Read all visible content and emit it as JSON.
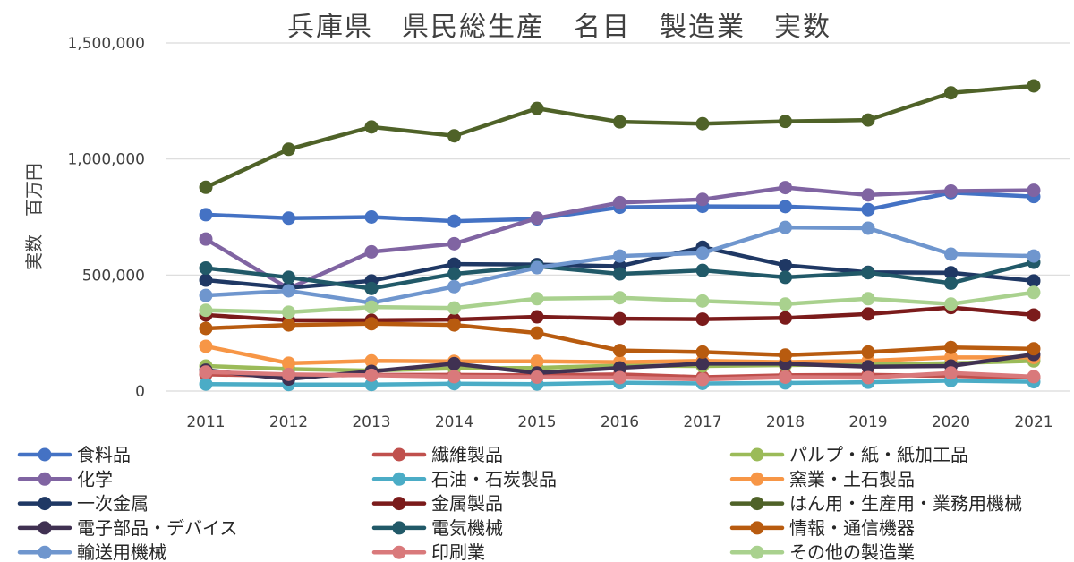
{
  "chart_data": {
    "type": "line",
    "title": "兵庫県　県民総生産　名目　製造業　実数",
    "ylabel": "実数　百万円",
    "xlabel": "",
    "x": [
      "2011",
      "2012",
      "2013",
      "2014",
      "2015",
      "2016",
      "2017",
      "2018",
      "2019",
      "2020",
      "2021"
    ],
    "ylim": [
      0,
      1500000
    ],
    "yticks": [
      0,
      500000,
      1000000,
      1500000
    ],
    "ytick_labels": [
      "0",
      "500,000",
      "1,000,000",
      "1,500,000"
    ],
    "grid": true,
    "legend_position": "bottom",
    "series": [
      {
        "name": "食料品",
        "color": "#4472C4",
        "values": [
          760000,
          745000,
          750000,
          732000,
          742000,
          792000,
          796000,
          795000,
          782000,
          855000,
          838000
        ]
      },
      {
        "name": "繊維製品",
        "color": "#C0504D",
        "values": [
          72000,
          65000,
          70000,
          70000,
          68000,
          72000,
          60000,
          68000,
          70000,
          65000,
          58000
        ]
      },
      {
        "name": "パルプ・紙・紙加工品",
        "color": "#9BBB59",
        "values": [
          108000,
          95000,
          88000,
          98000,
          100000,
          110000,
          108000,
          112000,
          115000,
          120000,
          130000
        ]
      },
      {
        "name": "化学",
        "color": "#8064A2",
        "values": [
          655000,
          442000,
          600000,
          635000,
          745000,
          812000,
          826000,
          877000,
          845000,
          862000,
          865000
        ]
      },
      {
        "name": "石油・石炭製品",
        "color": "#4BACC6",
        "values": [
          30000,
          28000,
          28000,
          32000,
          30000,
          36000,
          33000,
          35000,
          38000,
          45000,
          40000
        ]
      },
      {
        "name": "窯業・土石製品",
        "color": "#F79646",
        "values": [
          193000,
          120000,
          130000,
          128000,
          128000,
          125000,
          130000,
          125000,
          130000,
          145000,
          145000
        ]
      },
      {
        "name": "一次金属",
        "color": "#1F3864",
        "values": [
          478000,
          445000,
          475000,
          547000,
          545000,
          538000,
          620000,
          542000,
          512000,
          510000,
          475000
        ]
      },
      {
        "name": "金属製品",
        "color": "#7B1B1B",
        "values": [
          328000,
          305000,
          305000,
          308000,
          320000,
          312000,
          310000,
          315000,
          332000,
          360000,
          328000
        ]
      },
      {
        "name": "はん用・生産用・業務用機械",
        "color": "#4F6228",
        "values": [
          878000,
          1042000,
          1138000,
          1100000,
          1218000,
          1160000,
          1152000,
          1162000,
          1168000,
          1285000,
          1315000
        ]
      },
      {
        "name": "電子部品・デバイス",
        "color": "#403152",
        "values": [
          90000,
          52000,
          85000,
          118000,
          78000,
          100000,
          118000,
          118000,
          105000,
          108000,
          158000
        ]
      },
      {
        "name": "電気機械",
        "color": "#215968",
        "values": [
          530000,
          490000,
          442000,
          505000,
          538000,
          505000,
          520000,
          490000,
          510000,
          465000,
          555000
        ]
      },
      {
        "name": "情報・通信機器",
        "color": "#B85B0F",
        "values": [
          270000,
          285000,
          290000,
          285000,
          250000,
          175000,
          168000,
          155000,
          168000,
          188000,
          182000
        ]
      },
      {
        "name": "輸送用機械",
        "color": "#6F96CE",
        "values": [
          412000,
          432000,
          380000,
          450000,
          532000,
          582000,
          595000,
          705000,
          702000,
          590000,
          582000
        ]
      },
      {
        "name": "印刷業",
        "color": "#D9797B",
        "values": [
          82000,
          72000,
          68000,
          62000,
          60000,
          58000,
          50000,
          60000,
          58000,
          78000,
          62000
        ]
      },
      {
        "name": "その他の製造業",
        "color": "#A9D18E",
        "values": [
          348000,
          340000,
          362000,
          358000,
          398000,
          402000,
          388000,
          375000,
          398000,
          375000,
          425000
        ]
      }
    ]
  }
}
